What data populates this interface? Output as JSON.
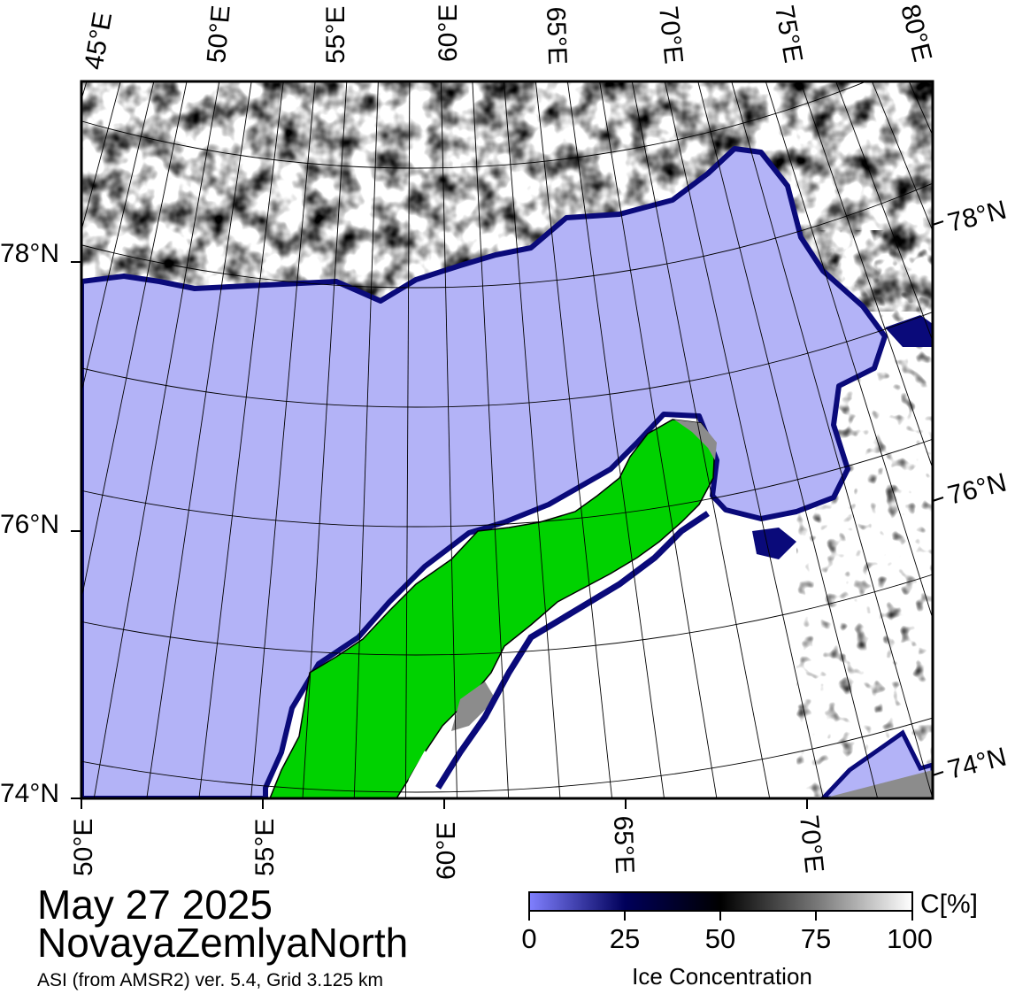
{
  "map": {
    "top_lon_labels": [
      "45°E",
      "50°E",
      "55°E",
      "60°E",
      "65°E",
      "70°E",
      "75°E",
      "80°E"
    ],
    "bottom_lon_labels": [
      "50°E",
      "55°E",
      "60°E",
      "65°E",
      "70°E"
    ],
    "left_lat_labels": [
      "78°N",
      "76°N",
      "74°N"
    ],
    "right_lat_labels": [
      "78°N",
      "76°N",
      "74°N"
    ],
    "colors": {
      "open_water": "#b3b3f7",
      "land": "#00d200",
      "no_data": "#8c8c8c",
      "ice_full": "#ffffff",
      "ice_edge": "#0a0a7a",
      "grid": "#000000"
    }
  },
  "title": {
    "date": "May 27 2025",
    "region": "NovayaZemlyaNorth",
    "product": "ASI (from AMSR2) ver. 5.4,  Grid 3.125 km"
  },
  "colorbar": {
    "unit": "C[%]",
    "ticks": [
      "0",
      "25",
      "50",
      "75",
      "100"
    ],
    "title": "Ice Concentration",
    "stops": [
      "#8080ff",
      "#00005a",
      "#000000",
      "#777777",
      "#ffffff"
    ]
  }
}
